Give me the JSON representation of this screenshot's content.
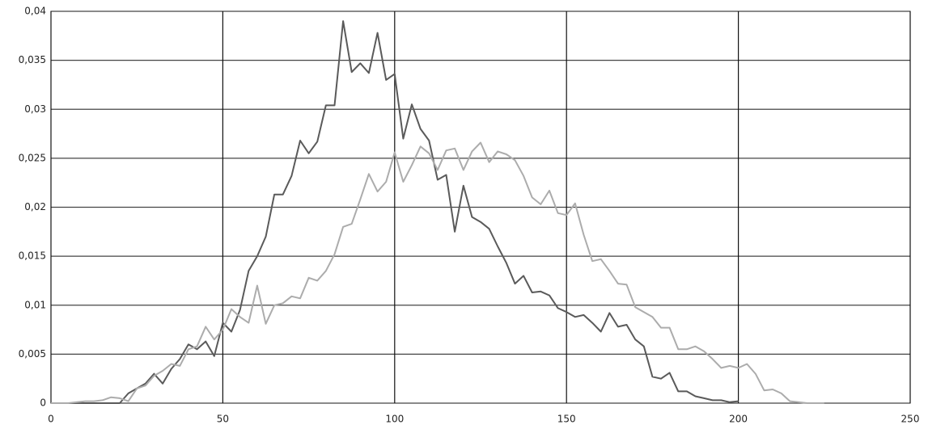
{
  "chart_data": {
    "type": "line",
    "x": [
      0,
      2.5,
      5,
      7.5,
      10,
      12.5,
      15,
      17.5,
      20,
      22.5,
      25,
      27.5,
      30,
      32.5,
      35,
      37.5,
      40,
      42.5,
      45,
      47.5,
      50,
      52.5,
      55,
      57.5,
      60,
      62.5,
      65,
      67.5,
      70,
      72.5,
      75,
      77.5,
      80,
      82.5,
      85,
      87.5,
      90,
      92.5,
      95,
      97.5,
      100,
      102.5,
      105,
      107.5,
      110,
      112.5,
      115,
      117.5,
      120,
      122.5,
      125,
      127.5,
      130,
      132.5,
      135,
      137.5,
      140,
      142.5,
      145,
      147.5,
      150,
      152.5,
      155,
      157.5,
      160,
      162.5,
      165,
      167.5,
      170,
      172.5,
      175,
      177.5,
      180,
      182.5,
      185,
      187.5,
      190,
      192.5,
      195,
      197.5,
      200,
      202.5,
      205,
      207.5,
      210,
      212.5,
      215,
      217.5,
      220,
      222.5,
      225
    ],
    "series": [
      {
        "color": "#5a5a5a",
        "values": [
          0,
          0,
          0,
          0,
          0,
          0,
          0,
          0,
          0,
          0.001,
          0.0015,
          0.002,
          0.003,
          0.002,
          0.0035,
          0.0045,
          0.006,
          0.0055,
          0.0063,
          0.0048,
          0.0082,
          0.0073,
          0.0095,
          0.0135,
          0.015,
          0.017,
          0.0213,
          0.0213,
          0.0232,
          0.0268,
          0.0255,
          0.0267,
          0.0304,
          0.0304,
          0.039,
          0.0338,
          0.0347,
          0.0337,
          0.0378,
          0.033,
          0.0336,
          0.027,
          0.0305,
          0.028,
          0.0268,
          0.0228,
          0.0233,
          0.0175,
          0.0222,
          0.019,
          0.0185,
          0.0178,
          0.016,
          0.0143,
          0.0122,
          0.013,
          0.0113,
          0.0114,
          0.011,
          0.0097,
          0.0093,
          0.0088,
          0.009,
          0.0082,
          0.0073,
          0.0092,
          0.0078,
          0.008,
          0.0065,
          0.0058,
          0.0027,
          0.0025,
          0.0031,
          0.0012,
          0.0012,
          0.0007,
          0.0005,
          0.0003,
          0.0003,
          0.0001,
          0.0002,
          null,
          null,
          null,
          null,
          null,
          null,
          null,
          null,
          null,
          null
        ]
      },
      {
        "color": "#acacac",
        "values": [
          0,
          0,
          0,
          0.0001,
          0.0002,
          0.0002,
          0.0003,
          0.0006,
          0.0005,
          0.0002,
          0.0015,
          0.0018,
          0.0028,
          0.0033,
          0.004,
          0.0038,
          0.0055,
          0.0058,
          0.0078,
          0.0065,
          0.0075,
          0.0096,
          0.0088,
          0.0082,
          0.012,
          0.0081,
          0.01,
          0.0102,
          0.0109,
          0.0107,
          0.0128,
          0.0125,
          0.0135,
          0.0152,
          0.018,
          0.0183,
          0.0208,
          0.0234,
          0.0216,
          0.0226,
          0.0256,
          0.0226,
          0.0243,
          0.0262,
          0.0255,
          0.0238,
          0.0258,
          0.026,
          0.0238,
          0.0257,
          0.0266,
          0.0246,
          0.0257,
          0.0254,
          0.0248,
          0.0232,
          0.021,
          0.0203,
          0.0217,
          0.0194,
          0.0192,
          0.0204,
          0.0172,
          0.0145,
          0.0147,
          0.0135,
          0.0122,
          0.0121,
          0.0098,
          0.0093,
          0.0088,
          0.0077,
          0.0077,
          0.0055,
          0.0055,
          0.0058,
          0.0053,
          0.0045,
          0.0036,
          0.0038,
          0.0036,
          0.004,
          0.003,
          0.0013,
          0.0014,
          0.001,
          0.0002,
          0.0001,
          0,
          0,
          0
        ]
      }
    ],
    "xlim": [
      0,
      250
    ],
    "xticks": [
      0,
      50,
      100,
      150,
      200,
      250
    ],
    "ylim": [
      0,
      0.04
    ],
    "yticks": [
      0,
      {
        "value": 0.005,
        "label": "0,005"
      },
      {
        "value": 0.01,
        "label": "0,01"
      },
      {
        "value": 0.015,
        "label": "0,015"
      },
      {
        "value": 0.02,
        "label": "0,02"
      },
      {
        "value": 0.025,
        "label": "0,025"
      },
      {
        "value": 0.03,
        "label": "0,03"
      },
      {
        "value": 0.035,
        "label": "0,035"
      },
      {
        "value": 0.04,
        "label": "0,04"
      }
    ],
    "grid": true
  }
}
